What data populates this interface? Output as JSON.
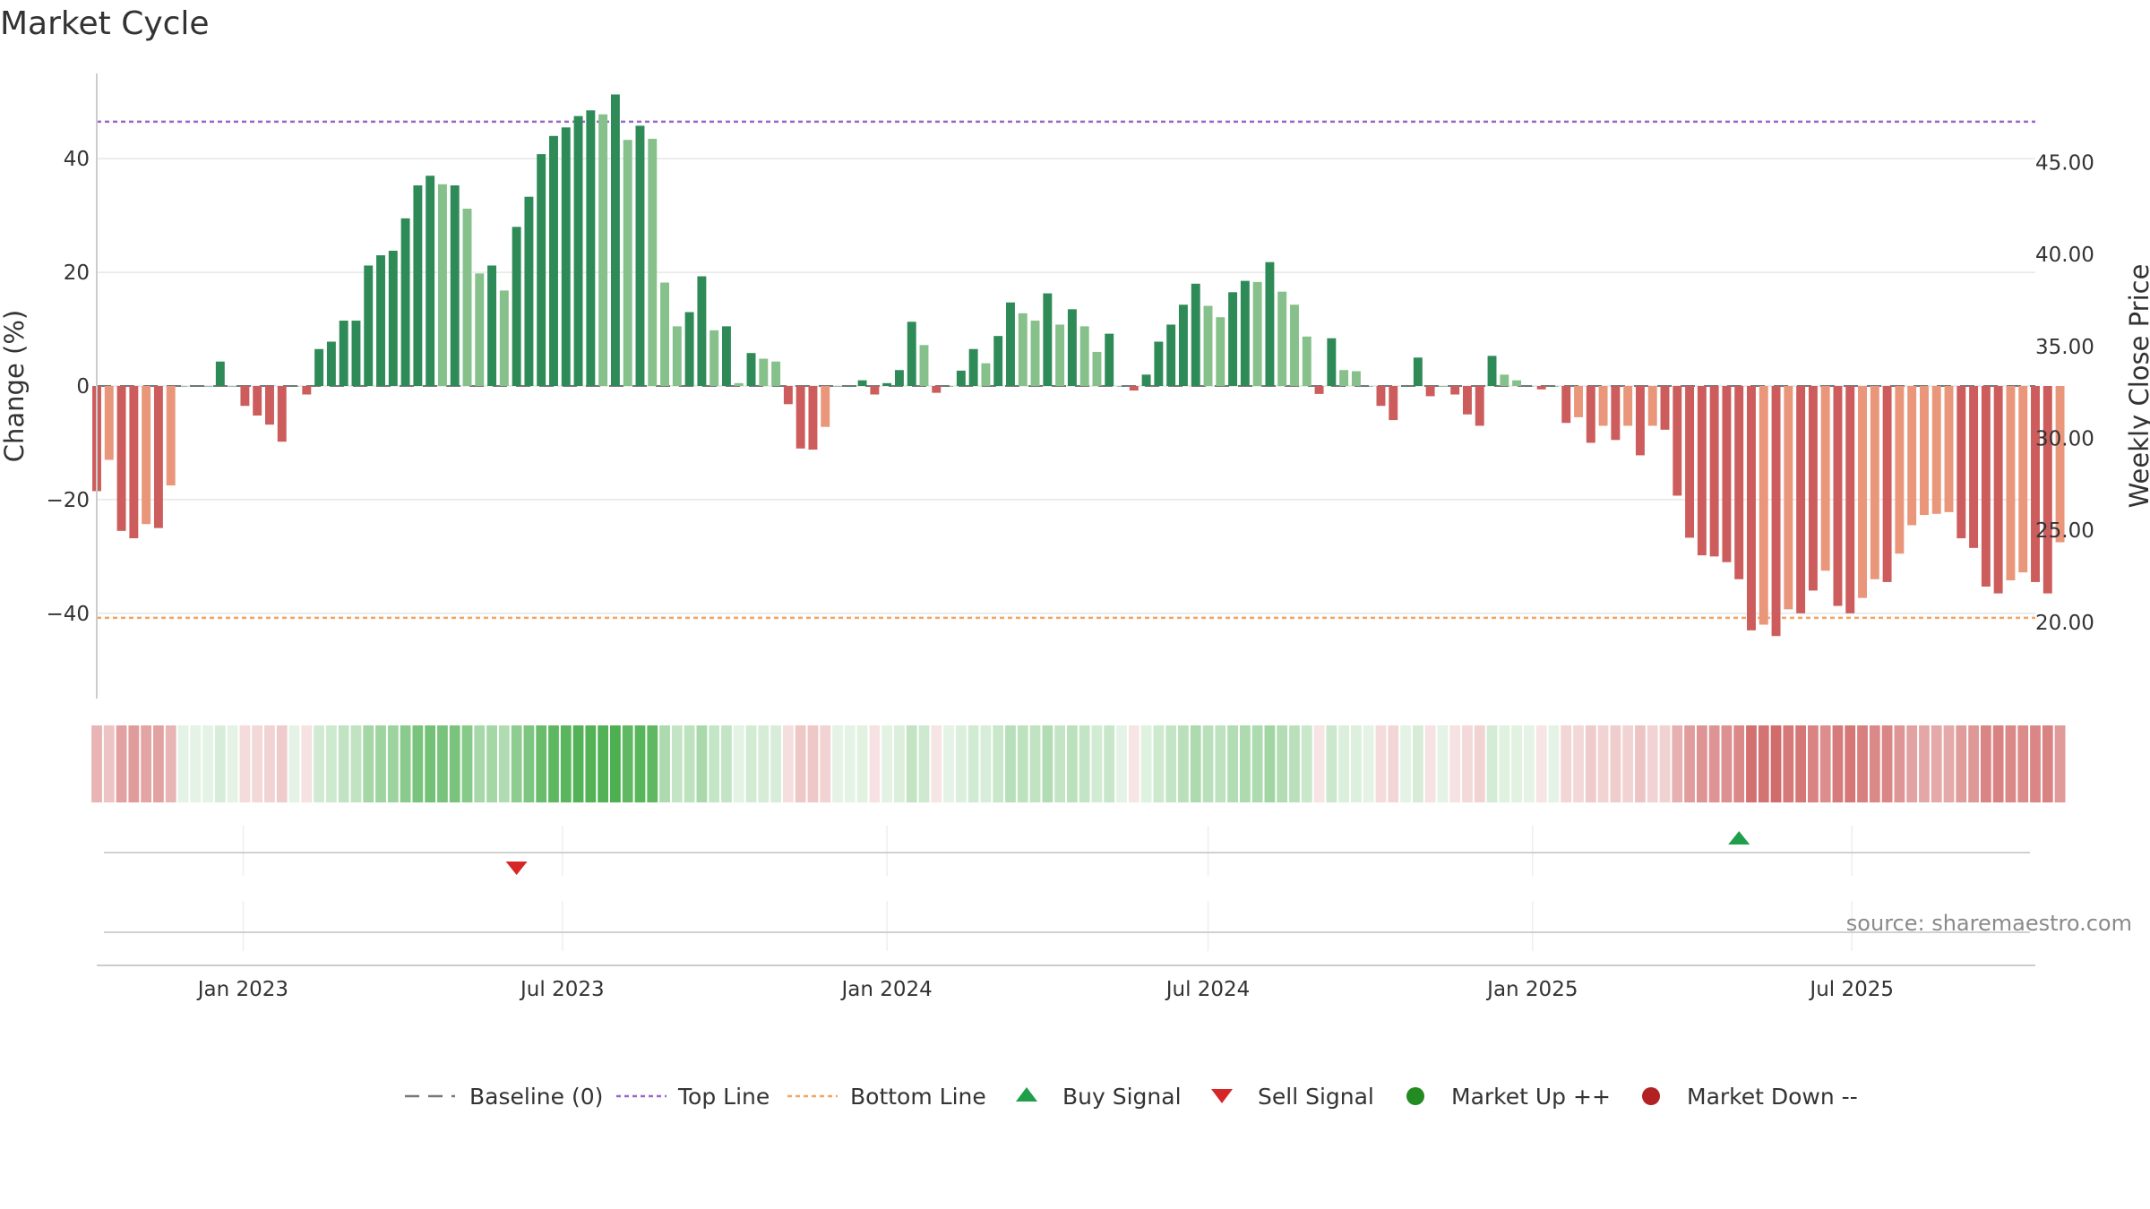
{
  "chart_data": {
    "type": "bar",
    "title": "Market Cycle",
    "ylabel": "Change (%)",
    "y2label": "Weekly Close Price",
    "ylim": [
      -55,
      55
    ],
    "y2lim": [
      15.8,
      49.8
    ],
    "yticks": [
      40,
      20,
      0,
      -20,
      -40
    ],
    "y2ticks": [
      "45.00",
      "40.00",
      "35.00",
      "30.00",
      "25.00",
      "20.00"
    ],
    "top_line": 46.5,
    "bottom_line": -40.8,
    "x_start": "2022-10-10",
    "x_end": "2025-10-13",
    "x_ticks": [
      {
        "label": "Jan 2023",
        "date": "2023-01-01"
      },
      {
        "label": "Jul 2023",
        "date": "2023-07-01"
      },
      {
        "label": "Jan 2024",
        "date": "2024-01-01"
      },
      {
        "label": "Jul 2024",
        "date": "2024-07-01"
      },
      {
        "label": "Jan 2025",
        "date": "2025-01-01"
      },
      {
        "label": "Jul 2025",
        "date": "2025-07-01"
      }
    ],
    "first_week": "2022-10-10",
    "values": [
      -18.5,
      -13,
      -25.5,
      -26.8,
      -24.3,
      -25,
      -17.5,
      0,
      0,
      0,
      4.3,
      0,
      -3.5,
      -5.2,
      -6.8,
      -9.8,
      0,
      -1.5,
      6.5,
      7.8,
      11.5,
      11.5,
      21.2,
      23,
      23.8,
      29.5,
      35.3,
      37,
      35.5,
      35.3,
      31.2,
      19.8,
      21.2,
      16.8,
      28,
      33.3,
      40.8,
      44,
      45.5,
      47.5,
      48.5,
      47.8,
      51.3,
      43.3,
      45.8,
      43.5,
      18.2,
      10.5,
      13,
      19.3,
      9.8,
      10.5,
      0.5,
      5.8,
      4.8,
      4.3,
      -3.2,
      -11,
      -11.2,
      -7.2,
      0,
      0,
      1,
      -1.5,
      0.5,
      2.8,
      11.3,
      7.2,
      -1.2,
      0,
      2.7,
      6.5,
      4,
      8.8,
      14.7,
      12.8,
      11.5,
      16.3,
      10.8,
      13.5,
      10.5,
      6,
      9.2,
      0,
      -0.8,
      2,
      7.8,
      10.8,
      14.3,
      18,
      14.1,
      12.1,
      16.5,
      18.5,
      18.3,
      21.8,
      16.6,
      14.3,
      8.7,
      -1.4,
      8.4,
      2.8,
      2.6,
      0,
      -3.5,
      -6,
      0,
      5,
      -1.8,
      0,
      -1.5,
      -5,
      -7,
      5.3,
      2,
      1,
      0,
      -0.6,
      0,
      -6.5,
      -5.5,
      -10,
      -7,
      -9.5,
      -7,
      -12.2,
      -7,
      -7.7,
      -19.3,
      -26.7,
      -29.8,
      -30,
      -31,
      -34,
      -43,
      -42,
      -44,
      -39.3,
      -40,
      -36,
      -32.5,
      -38.7,
      -40,
      -37.3,
      -34,
      -34.5,
      -29.5,
      -24.5,
      -22.7,
      -22.5,
      -22.2,
      -26.8,
      -28.5,
      -35.3,
      -36.5,
      -34.2,
      -32.8,
      -34.5,
      -36.5,
      -27.5
    ],
    "shade": [
      "dark",
      "light",
      "dark",
      "dark",
      "light",
      "dark",
      "light",
      "dark",
      "dark",
      "dark",
      "dark",
      "dark",
      "dark",
      "dark",
      "dark",
      "dark",
      "dark",
      "dark",
      "dark",
      "dark",
      "dark",
      "dark",
      "dark",
      "dark",
      "dark",
      "dark",
      "dark",
      "dark",
      "light",
      "dark",
      "light",
      "light",
      "dark",
      "light",
      "dark",
      "dark",
      "dark",
      "dark",
      "dark",
      "dark",
      "dark",
      "light",
      "dark",
      "light",
      "dark",
      "light",
      "light",
      "light",
      "dark",
      "dark",
      "light",
      "dark",
      "light",
      "dark",
      "light",
      "light",
      "dark",
      "dark",
      "dark",
      "light",
      "dark",
      "dark",
      "dark",
      "dark",
      "dark",
      "dark",
      "dark",
      "light",
      "dark",
      "dark",
      "dark",
      "dark",
      "light",
      "dark",
      "dark",
      "light",
      "light",
      "dark",
      "light",
      "dark",
      "light",
      "light",
      "dark",
      "dark",
      "dark",
      "dark",
      "dark",
      "dark",
      "dark",
      "dark",
      "light",
      "light",
      "dark",
      "dark",
      "light",
      "dark",
      "light",
      "light",
      "light",
      "dark",
      "dark",
      "light",
      "light",
      "dark",
      "dark",
      "dark",
      "dark",
      "dark",
      "dark",
      "dark",
      "dark",
      "dark",
      "dark",
      "dark",
      "light",
      "light",
      "dark",
      "dark",
      "dark",
      "dark",
      "light",
      "dark",
      "light",
      "dark",
      "light",
      "dark",
      "light",
      "dark",
      "dark",
      "dark",
      "dark",
      "dark",
      "dark",
      "dark",
      "dark",
      "light",
      "dark",
      "light",
      "dark",
      "dark",
      "light",
      "dark",
      "dark",
      "light",
      "light",
      "dark",
      "light",
      "light",
      "light",
      "light",
      "light",
      "dark",
      "dark",
      "dark",
      "dark",
      "light",
      "light",
      "dark",
      "dark",
      "light"
    ],
    "buy_signals": [
      "2025-04-28"
    ],
    "sell_signals": [
      "2023-06-05"
    ],
    "colors": {
      "up_dark": "#2e8b57",
      "up_light": "#86c08a",
      "down_dark": "#cd5c5c",
      "down_light": "#e9967a",
      "top_line": "#9966cc",
      "bottom_line": "#f4a460",
      "buy": "#1f9f4a",
      "sell": "#d62728",
      "market_up": "#228b22",
      "market_down": "#b22222",
      "baseline": "#777777",
      "heat_up": "#4caf50",
      "heat_down": "#cd5c5c"
    },
    "grid": true,
    "legend_position": "bottom-center",
    "legend": [
      {
        "key": "baseline",
        "label": "Baseline (0)"
      },
      {
        "key": "top",
        "label": "Top Line"
      },
      {
        "key": "bottom",
        "label": "Bottom Line"
      },
      {
        "key": "buy",
        "label": "Buy Signal"
      },
      {
        "key": "sell",
        "label": "Sell Signal"
      },
      {
        "key": "mup",
        "label": "Market Up ++"
      },
      {
        "key": "mdown",
        "label": "Market Down --"
      }
    ],
    "source": "source: sharemaestro.com"
  }
}
